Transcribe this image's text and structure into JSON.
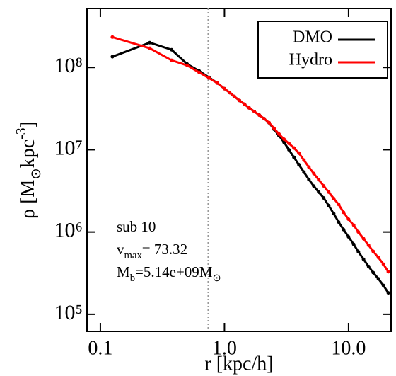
{
  "chart_data": {
    "type": "line",
    "xlabel": "r [kpc/h]",
    "ylabel_parts": [
      {
        "text": "ρ [M"
      },
      {
        "text": "⊙",
        "shift": "sub"
      },
      {
        "text": "kpc"
      },
      {
        "text": "-3",
        "shift": "sup"
      },
      {
        "text": "]"
      }
    ],
    "log_x": true,
    "log_y": true,
    "xlim": [
      0.078,
      22
    ],
    "ylim": [
      62000,
      520000000
    ],
    "xticks": [
      0.1,
      {
        "value": 1,
        "label": "1.0"
      },
      {
        "value": 10,
        "label": "10.0"
      }
    ],
    "yticks": [
      {
        "value": 100000,
        "label": "10⁵"
      },
      {
        "value": 1000000,
        "label": "10⁶"
      },
      {
        "value": 10000000,
        "label": "10⁷"
      },
      {
        "value": 100000000,
        "label": "10⁸"
      }
    ],
    "vline": 0.74,
    "legend": "upper right",
    "x": [
      0.125,
      0.25,
      0.375,
      0.5,
      0.625,
      0.75,
      0.875,
      1.0,
      1.1,
      1.2,
      1.32,
      1.45,
      1.58,
      1.74,
      1.91,
      2.09,
      2.29,
      2.51,
      2.75,
      3.02,
      3.31,
      3.63,
      3.98,
      4.37,
      4.79,
      5.25,
      5.75,
      6.31,
      6.92,
      7.59,
      8.32,
      9.12,
      10.0,
      11.0,
      12.0,
      13.2,
      14.5,
      15.8,
      17.4,
      19.1,
      20.9
    ],
    "series": [
      {
        "name": "DMO",
        "color": "#000000",
        "values": [
          135000000,
          200000000,
          164000000,
          110000000,
          90600000,
          75800000,
          64700000,
          55200000,
          49500000,
          44400000,
          39700000,
          35800000,
          32200000,
          29100000,
          26300000,
          23800000,
          21200000,
          17700000,
          14800000,
          12300000,
          9960000,
          8090000,
          6580000,
          5340000,
          4340000,
          3610000,
          3050000,
          2590000,
          2090000,
          1670000,
          1320000,
          1070000,
          873000,
          708000,
          575000,
          467000,
          381000,
          321000,
          270000,
          224000,
          182000
        ]
      },
      {
        "name": "Hydro",
        "color": "#ff0000",
        "values": [
          234000000,
          171000000,
          122000000,
          106000000,
          87100000,
          74300000,
          64700000,
          55200000,
          49500000,
          44400000,
          39700000,
          35800000,
          32200000,
          29100000,
          26300000,
          23800000,
          21300000,
          18200000,
          15500000,
          13400000,
          11900000,
          10500000,
          9080000,
          7480000,
          6150000,
          5130000,
          4310000,
          3630000,
          3050000,
          2560000,
          2160000,
          1730000,
          1430000,
          1210000,
          1000000,
          830000,
          690000,
          581000,
          489000,
          406000,
          328000
        ]
      }
    ],
    "annotations": [
      [
        {
          "text": "sub 10"
        }
      ],
      [
        {
          "text": "v"
        },
        {
          "text": "max",
          "shift": "sub"
        },
        {
          "text": "= 73.32"
        }
      ],
      [
        {
          "text": "M"
        },
        {
          "text": "b",
          "shift": "sub"
        },
        {
          "text": "=5.14e+09M"
        },
        {
          "text": "⊙",
          "shift": "sub"
        }
      ]
    ]
  }
}
